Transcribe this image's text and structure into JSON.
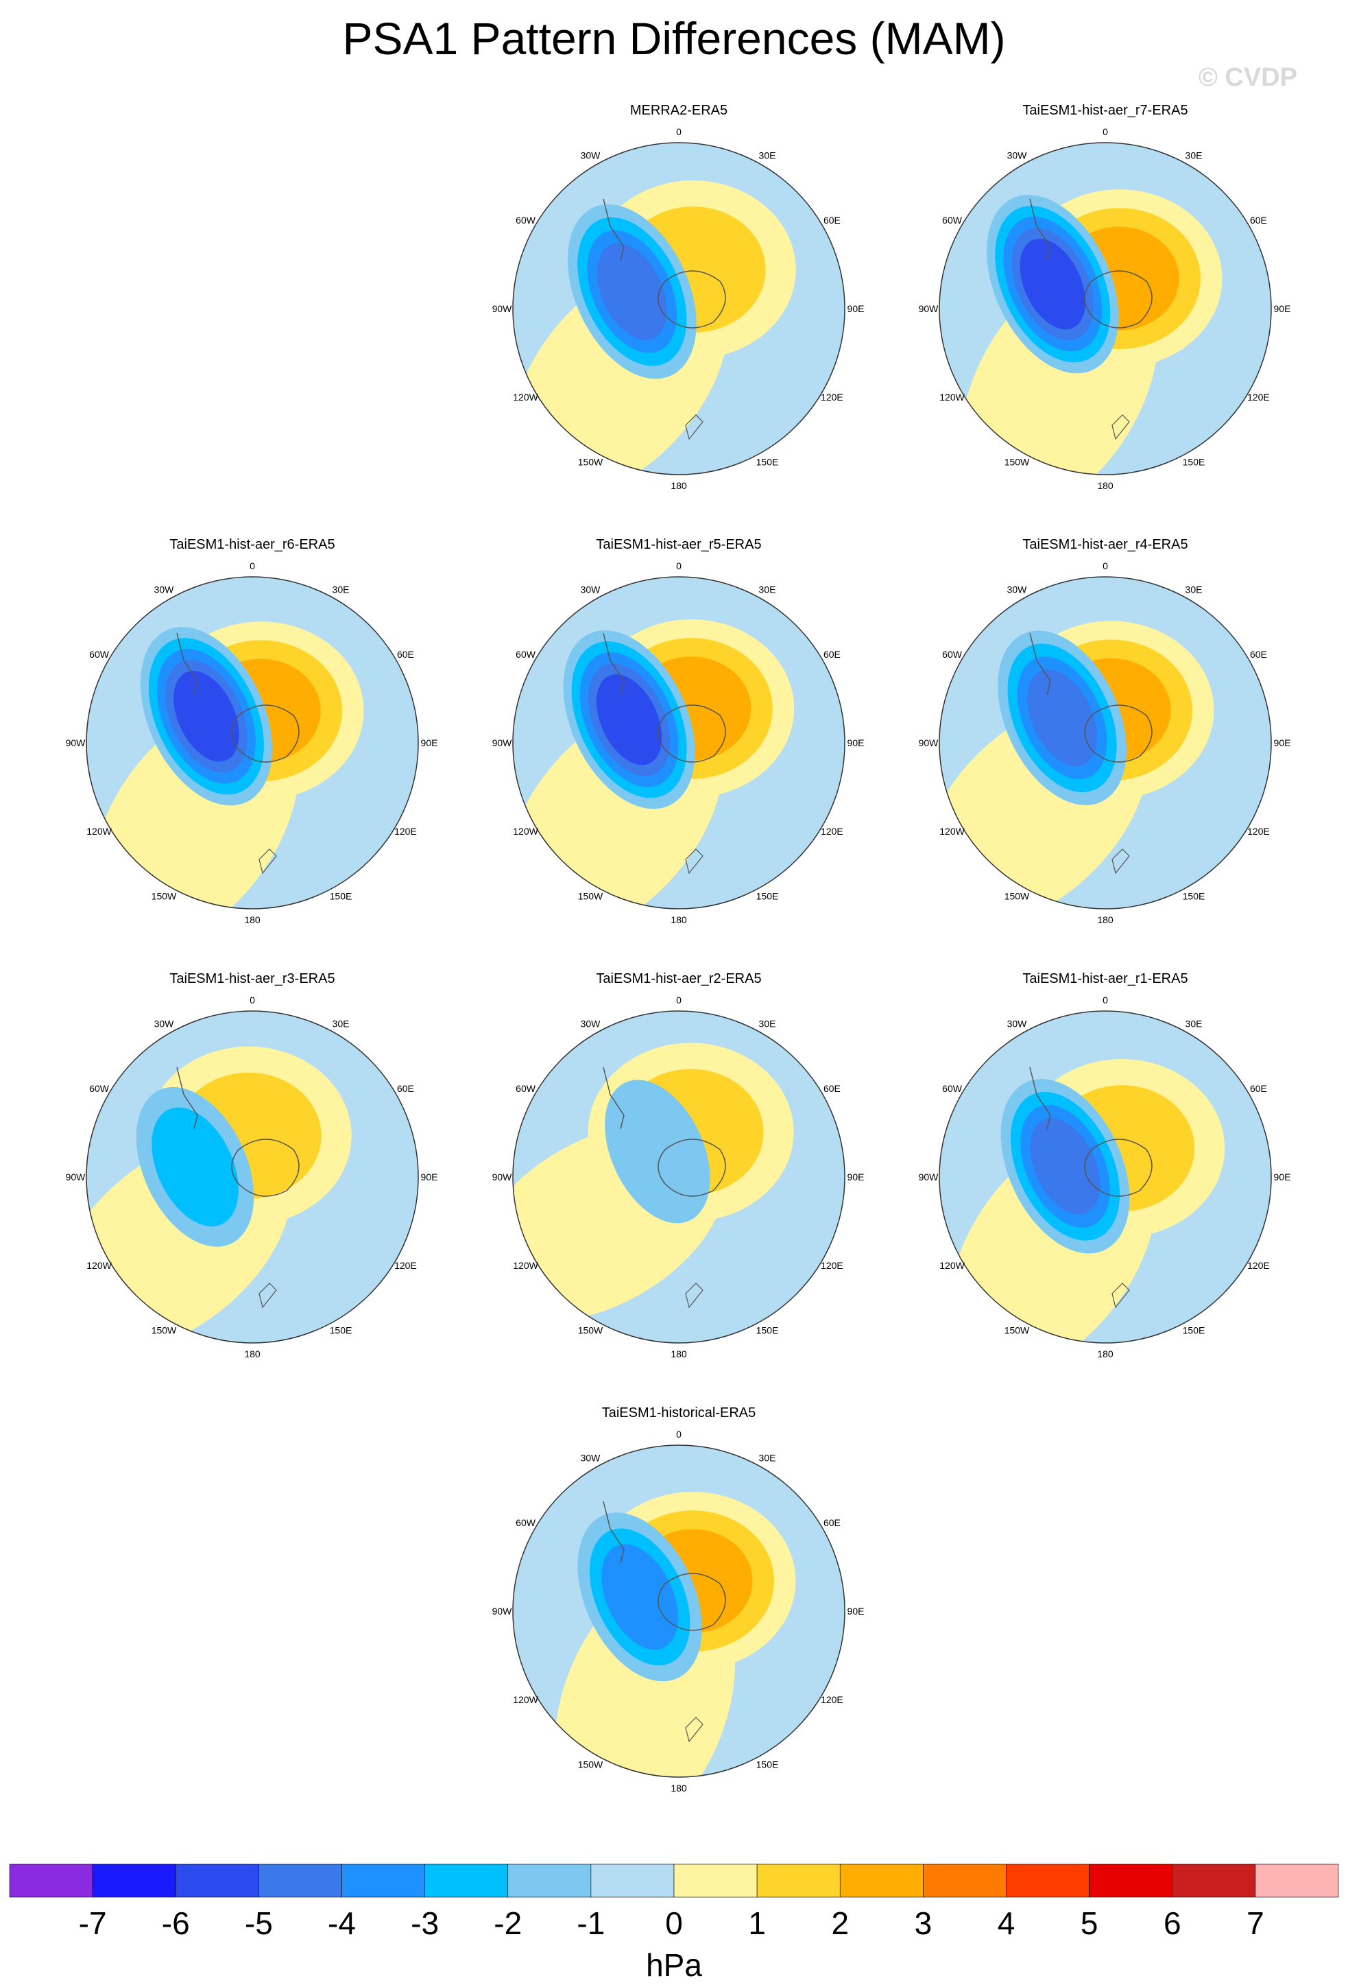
{
  "title": "PSA1 Pattern Differences (MAM)",
  "watermark": "© CVDP",
  "map_grid_labels": [
    "0",
    "30E",
    "60E",
    "90E",
    "120E",
    "150E",
    "180",
    "150W",
    "120W",
    "90W",
    "60W",
    "30W"
  ],
  "panels": [
    {
      "title": "MERRA2-ERA5",
      "low": -5,
      "high": 2,
      "pattern": 0
    },
    {
      "title": "TaiESM1-hist-aer_r7-ERA5",
      "low": -6,
      "high": 3,
      "pattern": 1
    },
    {
      "title": "TaiESM1-hist-aer_r6-ERA5",
      "low": -6,
      "high": 3,
      "pattern": 2
    },
    {
      "title": "TaiESM1-hist-aer_r5-ERA5",
      "low": -6,
      "high": 3,
      "pattern": 3
    },
    {
      "title": "TaiESM1-hist-aer_r4-ERA5",
      "low": -5,
      "high": 3,
      "pattern": 4
    },
    {
      "title": "TaiESM1-hist-aer_r3-ERA5",
      "low": -3,
      "high": 2,
      "pattern": 5
    },
    {
      "title": "TaiESM1-hist-aer_r2-ERA5",
      "low": -2,
      "high": 2,
      "pattern": 6
    },
    {
      "title": "TaiESM1-hist-aer_r1-ERA5",
      "low": -5,
      "high": 2,
      "pattern": 7
    },
    {
      "title": "TaiESM1-historical-ERA5",
      "low": -4,
      "high": 3,
      "pattern": 8
    }
  ],
  "colorbar": {
    "colors": [
      "#8a2be2",
      "#1a1aff",
      "#2b4bef",
      "#3a78ec",
      "#1e90ff",
      "#00bfff",
      "#7cc8f0",
      "#b4dcf2",
      "#fff5a0",
      "#ffd42a",
      "#ffad00",
      "#ff7a00",
      "#ff3c00",
      "#e60000",
      "#c81e1e",
      "#ffb4b4"
    ],
    "tick_labels": [
      "-7",
      "-6",
      "-5",
      "-4",
      "-3",
      "-2",
      "-1",
      "0",
      "1",
      "2",
      "3",
      "4",
      "5",
      "6",
      "7"
    ],
    "units": "hPa"
  }
}
